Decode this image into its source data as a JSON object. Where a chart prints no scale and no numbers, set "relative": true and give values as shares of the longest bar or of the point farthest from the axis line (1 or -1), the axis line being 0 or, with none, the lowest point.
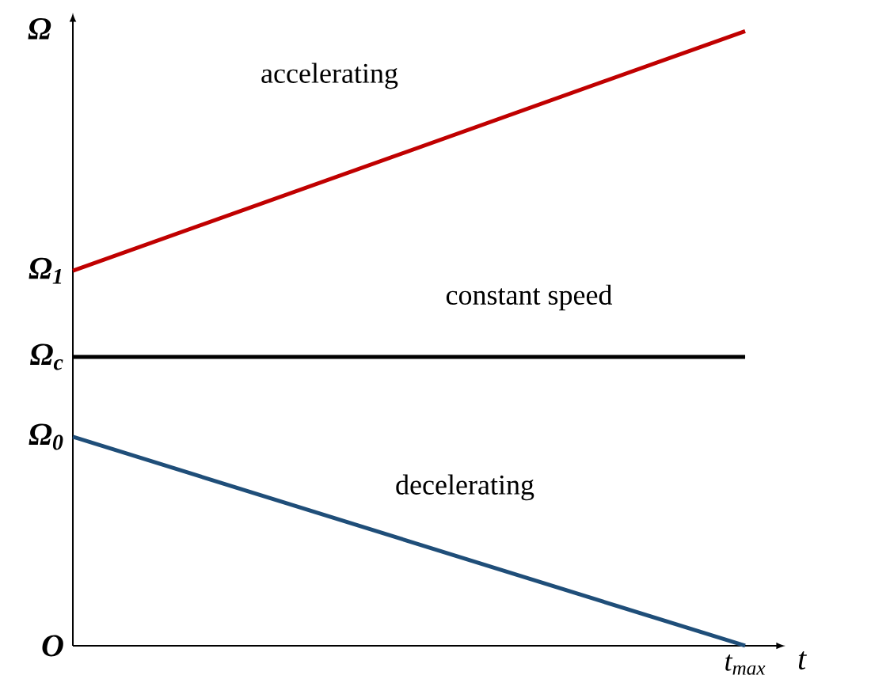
{
  "chart_data": {
    "type": "line",
    "relative": true,
    "xlabel": "t",
    "ylabel": "Ω",
    "categories": [
      null,
      null
    ],
    "series": [
      {
        "color": "#c00000",
        "values": [
          0.61,
          1
        ]
      },
      {
        "color": "#000000",
        "values": [
          0.47,
          0.47
        ]
      },
      {
        "color": "#1f4e79",
        "values": [
          0.34,
          0
        ]
      }
    ],
    "annotations": [
      "O",
      "Ω$_{0}$",
      "Ω$_{c}$",
      "Ω$_{1}$",
      "t$_{max}$",
      "accelerating",
      "constant speed",
      "decelerating"
    ]
  }
}
